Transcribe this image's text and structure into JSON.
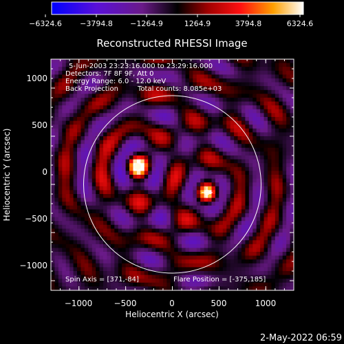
{
  "colorbar": {
    "tick_labels": [
      "−6324.6",
      "−3794.8",
      "−1264.9",
      "1264.9",
      "3794.8",
      "6324.6"
    ],
    "min": -6324.6,
    "max": 6324.6
  },
  "title": "Reconstructed RHESSI Image",
  "annotations": {
    "line1": "5-Jun-2003 23:23:16.000 to 23:29:16.000",
    "line2": "Detectors: 7F 8F 9F, Att 0",
    "line3": "Energy Range: 6.0 - 12.0 keV",
    "line4a": "Back Projection",
    "line4b": "Total counts: 8.085e+03",
    "spin_axis": "Spin Axis = [371,-84]",
    "flare_position": "Flare Position = [-375,185]"
  },
  "timestamp": "2-May-2022 06:59",
  "chart_data": {
    "type": "heatmap",
    "title": "Reconstructed RHESSI Image",
    "xlabel": "Heliocentric X (arcsec)",
    "ylabel": "Heliocentric Y (arcsec)",
    "xlim": [
      -1300,
      1300
    ],
    "ylim": [
      -1100,
      1300
    ],
    "x_ticks": [
      -1000,
      -500,
      0,
      500,
      1000
    ],
    "y_ticks": [
      -1000,
      -500,
      0,
      500,
      1000
    ],
    "x_tick_labels": [
      "−1000",
      "−500",
      "0",
      "500",
      "1000"
    ],
    "y_tick_labels": [
      "−1000",
      "−500",
      "0",
      "500",
      "1000"
    ],
    "solar_limb_radius": 950,
    "sources": [
      {
        "x": -375,
        "y": 185
      },
      {
        "x": 371,
        "y": -84
      }
    ],
    "marker_plus": {
      "x": 371,
      "y": -84
    },
    "colorbar_range": [
      -6324.6,
      6324.6
    ]
  }
}
